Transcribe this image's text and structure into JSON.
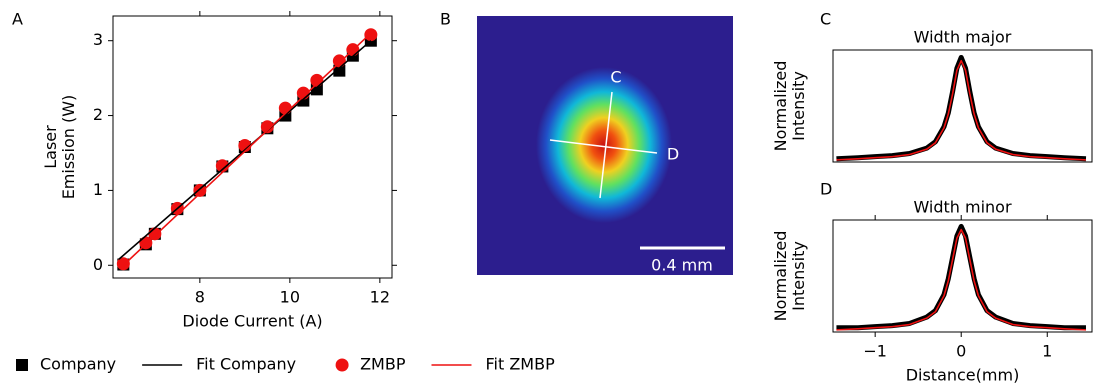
{
  "chart_data": [
    {
      "type": "scatter",
      "panel_label": "A",
      "x_label": "Diode Current (A)",
      "y_label": "Laser Emission (W)",
      "xlim": [
        6.07,
        12.27
      ],
      "ylim": [
        -0.17,
        3.33
      ],
      "xticks": [
        8,
        10,
        12
      ],
      "yticks": [
        0,
        1,
        2,
        3
      ],
      "legend": "below",
      "series": [
        {
          "name": "Company",
          "color": "#000000",
          "mode": "square",
          "x": [
            6.3,
            6.8,
            7.0,
            7.5,
            8.0,
            8.5,
            9.0,
            9.5,
            9.9,
            10.3,
            10.6,
            11.1,
            11.4,
            11.8
          ],
          "values": [
            0.01,
            0.28,
            0.42,
            0.75,
            1.0,
            1.32,
            1.58,
            1.83,
            2.0,
            2.2,
            2.35,
            2.6,
            2.8,
            3.0
          ]
        },
        {
          "name": "Fit Company",
          "color": "#000000",
          "mode": "line",
          "x": [
            6.2,
            11.8
          ],
          "values": [
            0.08,
            3.0
          ]
        },
        {
          "name": "ZMBP",
          "color": "#ee1111",
          "mode": "circle",
          "x": [
            6.3,
            6.8,
            7.0,
            7.5,
            8.0,
            8.5,
            9.0,
            9.5,
            9.9,
            10.3,
            10.6,
            11.1,
            11.4,
            11.8
          ],
          "values": [
            0.02,
            0.3,
            0.42,
            0.76,
            1.0,
            1.33,
            1.6,
            1.85,
            2.1,
            2.3,
            2.47,
            2.73,
            2.88,
            3.08
          ]
        },
        {
          "name": "Fit ZMBP",
          "color": "#ee1111",
          "mode": "line",
          "x": [
            6.3,
            11.8
          ],
          "values": [
            0.0,
            3.1
          ]
        }
      ]
    },
    {
      "type": "image",
      "panel_label": "B",
      "annotations": [
        "C",
        "D"
      ],
      "scale_bar_label": "0.4 mm"
    },
    {
      "type": "line",
      "panel_label": "C",
      "title": "Width major",
      "y_label": "Normalized Intensity",
      "xlim": [
        -1.49,
        1.52
      ],
      "ylim": [
        0,
        1.05
      ],
      "series": [
        {
          "color": "#000000",
          "mode": "thick",
          "x": [
            -1.45,
            -1.2,
            -1,
            -0.8,
            -0.6,
            -0.4,
            -0.3,
            -0.2,
            -0.15,
            -0.1,
            -0.05,
            0,
            0.05,
            0.1,
            0.15,
            0.2,
            0.3,
            0.4,
            0.6,
            0.8,
            1,
            1.2,
            1.45
          ],
          "values": [
            0.03,
            0.04,
            0.05,
            0.06,
            0.08,
            0.13,
            0.19,
            0.33,
            0.46,
            0.66,
            0.88,
            0.98,
            0.88,
            0.66,
            0.46,
            0.33,
            0.19,
            0.13,
            0.08,
            0.06,
            0.05,
            0.04,
            0.03
          ]
        },
        {
          "color": "#ee1111",
          "mode": "line",
          "x": [
            -1.45,
            -1.2,
            -1,
            -0.8,
            -0.6,
            -0.4,
            -0.3,
            -0.2,
            -0.15,
            -0.1,
            -0.05,
            0,
            0.05,
            0.1,
            0.15,
            0.2,
            0.3,
            0.4,
            0.6,
            0.8,
            1,
            1.2,
            1.45
          ],
          "values": [
            0.02,
            0.03,
            0.04,
            0.05,
            0.07,
            0.12,
            0.18,
            0.32,
            0.45,
            0.64,
            0.86,
            0.95,
            0.86,
            0.64,
            0.45,
            0.32,
            0.18,
            0.12,
            0.07,
            0.05,
            0.04,
            0.03,
            0.02
          ]
        }
      ]
    },
    {
      "type": "line",
      "panel_label": "D",
      "title": "Width minor",
      "y_label": "Normalized Intensity",
      "x_label": "Distance(mm)",
      "xlim": [
        -1.49,
        1.52
      ],
      "ylim": [
        0,
        1.05
      ],
      "xticks": [
        {
          "value": -1,
          "label": "−1"
        },
        0,
        1
      ],
      "series": [
        {
          "color": "#000000",
          "mode": "thick",
          "x": [
            -1.45,
            -1.2,
            -1,
            -0.8,
            -0.6,
            -0.4,
            -0.3,
            -0.2,
            -0.15,
            -0.1,
            -0.05,
            0,
            0.05,
            0.1,
            0.15,
            0.2,
            0.3,
            0.4,
            0.6,
            0.8,
            1,
            1.2,
            1.45
          ],
          "values": [
            0.04,
            0.04,
            0.05,
            0.06,
            0.08,
            0.14,
            0.2,
            0.35,
            0.5,
            0.7,
            0.9,
            0.99,
            0.9,
            0.7,
            0.5,
            0.35,
            0.2,
            0.14,
            0.08,
            0.06,
            0.05,
            0.04,
            0.04
          ]
        },
        {
          "color": "#ee1111",
          "mode": "line",
          "x": [
            -1.45,
            -1.2,
            -1,
            -0.8,
            -0.6,
            -0.4,
            -0.3,
            -0.2,
            -0.15,
            -0.1,
            -0.05,
            0,
            0.05,
            0.1,
            0.15,
            0.2,
            0.3,
            0.4,
            0.6,
            0.8,
            1,
            1.2,
            1.45
          ],
          "values": [
            0.02,
            0.03,
            0.04,
            0.05,
            0.07,
            0.13,
            0.19,
            0.34,
            0.48,
            0.68,
            0.88,
            0.96,
            0.88,
            0.68,
            0.48,
            0.34,
            0.19,
            0.13,
            0.07,
            0.05,
            0.04,
            0.03,
            0.02
          ]
        }
      ]
    }
  ]
}
